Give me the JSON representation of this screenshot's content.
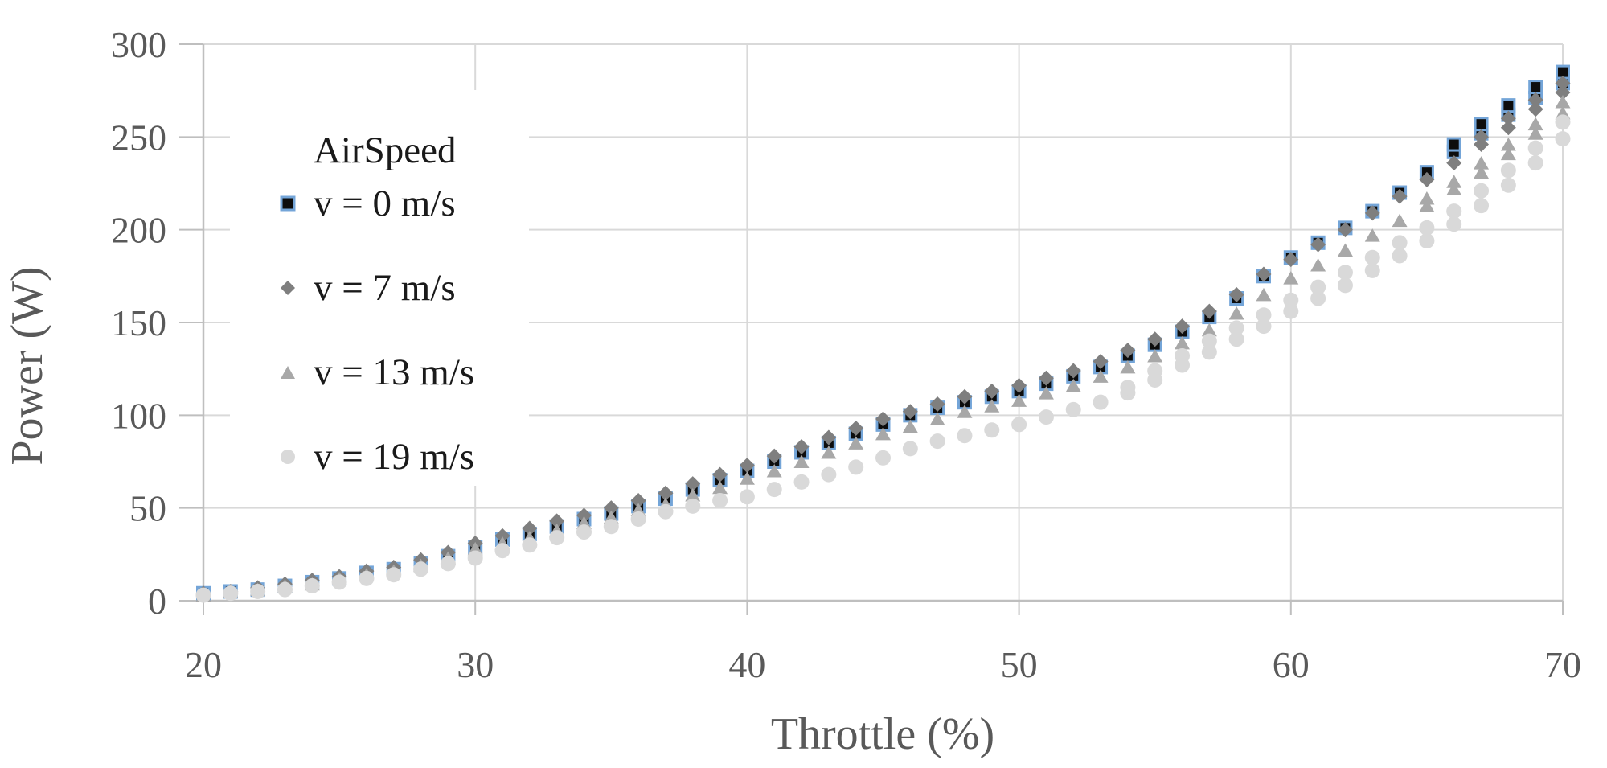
{
  "chart_data": {
    "type": "scatter",
    "title": "",
    "xlabel": "Throttle (%)",
    "ylabel": "Power (W)",
    "xlim": [
      20,
      70
    ],
    "ylim": [
      0,
      300
    ],
    "x_ticks": [
      20,
      30,
      40,
      50,
      60,
      70
    ],
    "y_ticks": [
      0,
      50,
      100,
      150,
      200,
      250,
      300
    ],
    "grid": true,
    "legend_position": "inside-top-left",
    "legend_title": "AirSpeed",
    "x": [
      20,
      21,
      22,
      23,
      24,
      25,
      26,
      27,
      28,
      29,
      30,
      31,
      32,
      33,
      34,
      35,
      36,
      37,
      38,
      39,
      40,
      41,
      42,
      43,
      44,
      45,
      46,
      47,
      48,
      49,
      50,
      51,
      52,
      53,
      54,
      55,
      56,
      57,
      58,
      59,
      60,
      61,
      62,
      63,
      64,
      65,
      66,
      67,
      68,
      69,
      70
    ],
    "series": [
      {
        "name": "v = 0 m/s",
        "marker": "square",
        "fill": "#0d0d0d",
        "stroke": "#74a5d8",
        "values": [
          4,
          5,
          6,
          8,
          10,
          12,
          15,
          17,
          20,
          24,
          29,
          33,
          36,
          40,
          44,
          47,
          51,
          55,
          60,
          65,
          70,
          75,
          80,
          85,
          90,
          95,
          100,
          104,
          107,
          110,
          113,
          117,
          121,
          126,
          132,
          138,
          145,
          153,
          163,
          175,
          185,
          193,
          201,
          210,
          220,
          231,
          242,
          252,
          262,
          271,
          279
        ],
        "values_run2": [
          4,
          5,
          6,
          8,
          10,
          12,
          15,
          17,
          20,
          24,
          29,
          33,
          36,
          40,
          44,
          47,
          51,
          55,
          60,
          65,
          70,
          75,
          80,
          85,
          90,
          95,
          100,
          104,
          107,
          110,
          113,
          117,
          121,
          126,
          132,
          138,
          145,
          153,
          163,
          175,
          185,
          193,
          201,
          210,
          220,
          231,
          246,
          257,
          267,
          277,
          285
        ]
      },
      {
        "name": "v = 7 m/s",
        "marker": "diamond",
        "fill": "#7f7f7f",
        "stroke": "none",
        "values": [
          4,
          5,
          7,
          9,
          11,
          13,
          16,
          18,
          22,
          26,
          31,
          35,
          39,
          43,
          46,
          50,
          54,
          58,
          63,
          68,
          73,
          78,
          83,
          88,
          93,
          98,
          102,
          106,
          110,
          113,
          116,
          120,
          124,
          129,
          135,
          141,
          148,
          156,
          165,
          176,
          184,
          192,
          200,
          209,
          218,
          227,
          236,
          246,
          255,
          265,
          274
        ],
        "values_run2": [
          4,
          5,
          7,
          9,
          11,
          13,
          16,
          18,
          22,
          26,
          31,
          35,
          39,
          43,
          46,
          50,
          54,
          58,
          63,
          68,
          73,
          78,
          83,
          88,
          93,
          98,
          102,
          106,
          110,
          113,
          116,
          120,
          124,
          129,
          135,
          141,
          148,
          156,
          165,
          176,
          184,
          192,
          200,
          209,
          218,
          227,
          236,
          250,
          260,
          270,
          279
        ]
      },
      {
        "name": "v = 13 m/s",
        "marker": "triangle",
        "fill": "#a8a8a8",
        "stroke": "none",
        "values": [
          3,
          5,
          6,
          8,
          9,
          12,
          14,
          16,
          19,
          23,
          28,
          31,
          34,
          38,
          42,
          45,
          49,
          52,
          57,
          61,
          66,
          70,
          75,
          80,
          85,
          90,
          94,
          98,
          102,
          105,
          108,
          112,
          116,
          121,
          126,
          132,
          139,
          146,
          155,
          165,
          174,
          181,
          189,
          197,
          205,
          213,
          222,
          231,
          241,
          252,
          263
        ],
        "values_run2": [
          3,
          5,
          6,
          8,
          9,
          12,
          14,
          16,
          19,
          23,
          28,
          31,
          34,
          38,
          42,
          45,
          49,
          52,
          57,
          61,
          66,
          70,
          75,
          80,
          85,
          90,
          94,
          98,
          102,
          105,
          108,
          112,
          116,
          121,
          126,
          132,
          139,
          146,
          155,
          165,
          174,
          181,
          189,
          197,
          205,
          217,
          226,
          236,
          246,
          257,
          269
        ]
      },
      {
        "name": "v = 19 m/s",
        "marker": "circle",
        "fill": "#d9d9d9",
        "stroke": "none",
        "values": [
          3,
          4,
          5,
          6,
          8,
          10,
          12,
          14,
          17,
          20,
          23,
          27,
          30,
          34,
          37,
          40,
          44,
          48,
          51,
          54,
          56,
          60,
          64,
          68,
          72,
          77,
          82,
          86,
          89,
          92,
          95,
          99,
          103,
          107,
          112,
          119,
          127,
          134,
          141,
          148,
          156,
          163,
          170,
          178,
          186,
          194,
          203,
          213,
          224,
          236,
          249
        ],
        "values_run2": [
          3,
          4,
          5,
          6,
          8,
          10,
          12,
          14,
          17,
          20,
          23,
          27,
          30,
          34,
          37,
          40,
          44,
          48,
          51,
          54,
          56,
          60,
          64,
          68,
          72,
          77,
          82,
          86,
          89,
          92,
          95,
          99,
          103,
          107,
          115,
          124,
          132,
          140,
          147,
          154,
          162,
          169,
          177,
          185,
          193,
          201,
          210,
          221,
          232,
          244,
          258
        ]
      }
    ],
    "colors": {
      "gridline": "#d9d9d9",
      "axis_line": "#bfbfbf",
      "axis_text": "#595959",
      "legend_text": "#1a1a1a",
      "background": "#ffffff",
      "square_border_blue": "#74a5d8"
    }
  }
}
